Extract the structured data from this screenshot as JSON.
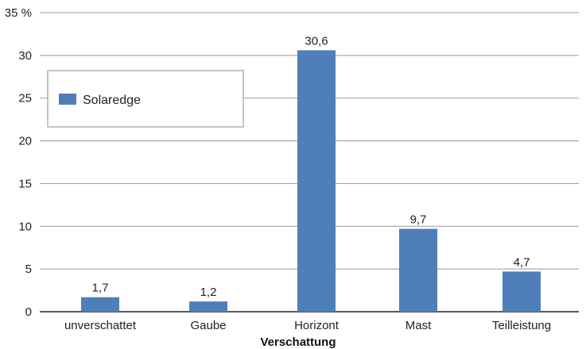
{
  "chart_data": {
    "type": "bar",
    "categories": [
      "unverschattet",
      "Gaube",
      "Horizont",
      "Mast",
      "Teilleistung"
    ],
    "series": [
      {
        "name": "Solaredge",
        "values": [
          1.7,
          1.2,
          30.6,
          9.7,
          4.7
        ],
        "value_labels": [
          "1,7",
          "1,2",
          "30,6",
          "9,7",
          "4,7"
        ],
        "color": "#4f7fb8"
      }
    ],
    "ylim": [
      0,
      35
    ],
    "yticks": [
      0,
      5,
      10,
      15,
      20,
      25,
      30,
      35
    ],
    "ytick_labels": [
      "0",
      "5",
      "10",
      "15",
      "20",
      "25",
      "30",
      "35 %"
    ],
    "xlabel": "Verschattung",
    "ylabel": "",
    "grid": true,
    "legend_position": "top-left"
  }
}
